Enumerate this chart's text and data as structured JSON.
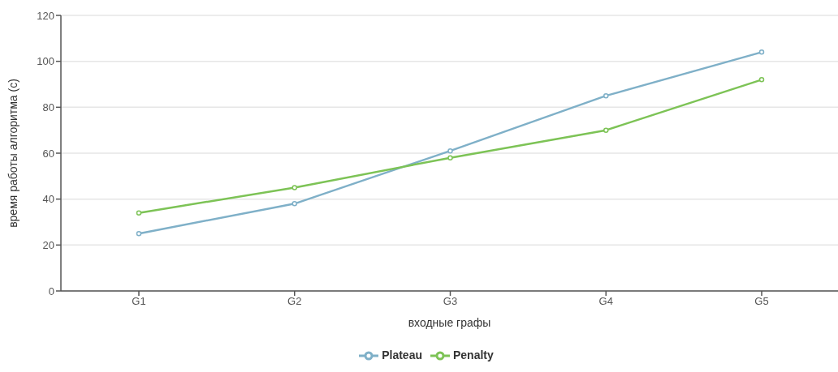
{
  "chart_data": {
    "type": "line",
    "xlabel": "входные графы",
    "ylabel": "время работы алгоритма (с)",
    "categories": [
      "G1",
      "G2",
      "G3",
      "G4",
      "G5"
    ],
    "series": [
      {
        "name": "Plateau",
        "color": "#7fb0c8",
        "values": [
          25,
          38,
          61,
          85,
          104
        ]
      },
      {
        "name": "Penalty",
        "color": "#7dc356",
        "values": [
          34,
          45,
          58,
          70,
          92
        ]
      }
    ],
    "ylim": [
      0,
      120
    ],
    "yticks": [
      0,
      20,
      40,
      60,
      80,
      100,
      120
    ],
    "grid": "y",
    "legend": "bottom",
    "marker": "circle",
    "line_style": "solid"
  }
}
